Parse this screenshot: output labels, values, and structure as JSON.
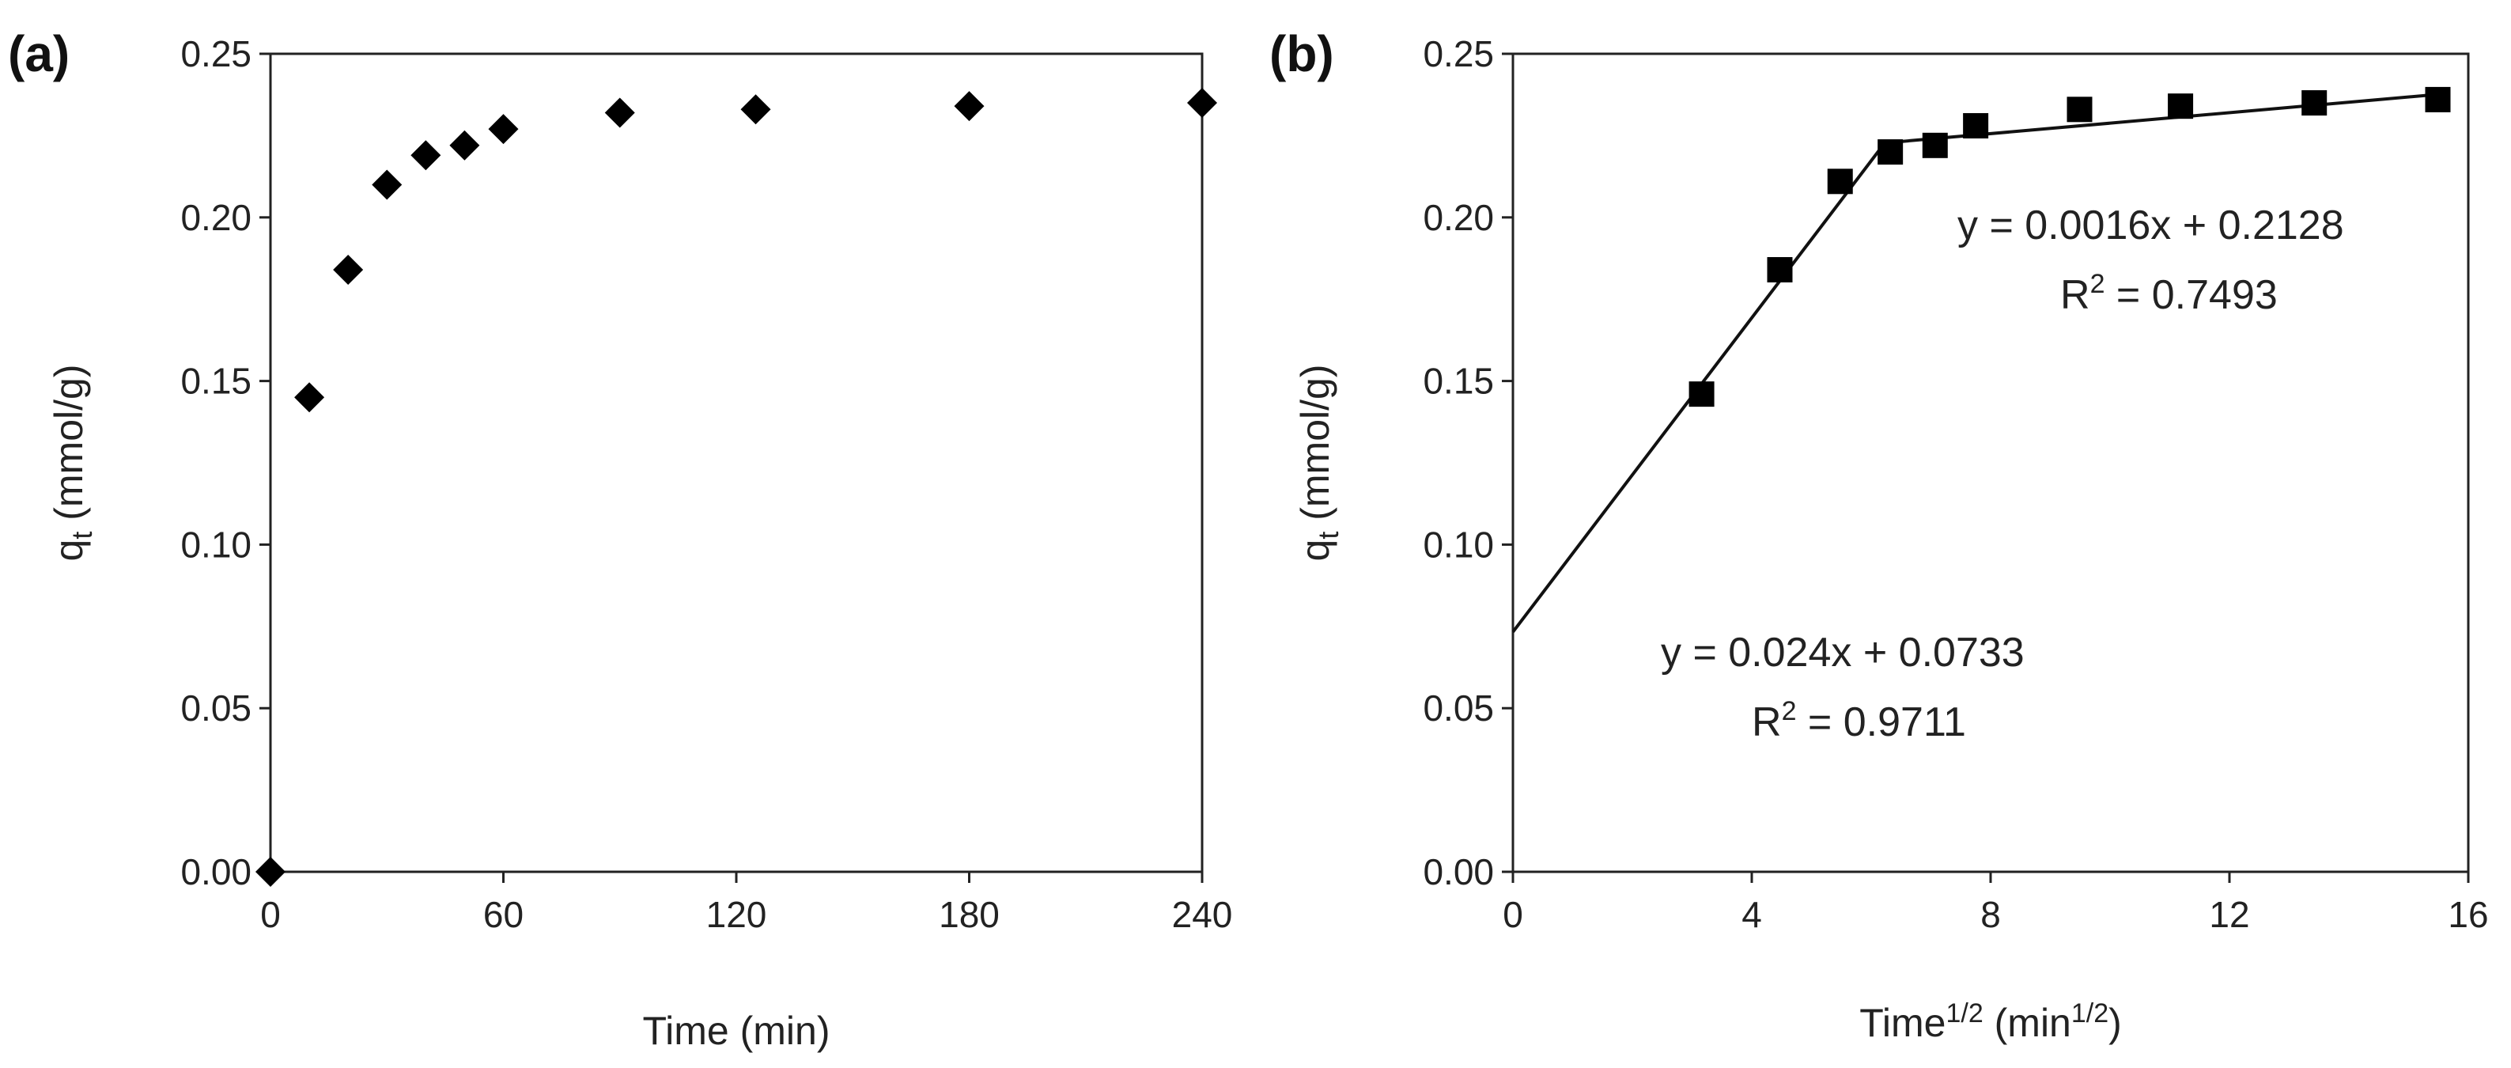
{
  "chart_data": [
    {
      "type": "scatter",
      "panel_label": "(a)",
      "title": "",
      "xlabel": "Time (min)",
      "ylabel_main": "q",
      "ylabel_sub": "t",
      "ylabel_rest": " (mmol/g)",
      "xlim": [
        0,
        240
      ],
      "ylim": [
        0,
        0.25
      ],
      "xticks": [
        0,
        60,
        120,
        180,
        240
      ],
      "xtick_labels": [
        "0",
        "60",
        "120",
        "180",
        "240"
      ],
      "yticks": [
        0,
        0.05,
        0.1,
        0.15,
        0.2,
        0.25
      ],
      "ytick_labels": [
        "0.00",
        "0.05",
        "0.10",
        "0.15",
        "0.20",
        "0.25"
      ],
      "marker": "diamond",
      "grid": false,
      "series": [
        {
          "name": "qt",
          "x": [
            0,
            10,
            20,
            30,
            40,
            50,
            60,
            90,
            125,
            180,
            240
          ],
          "y": [
            0.0,
            0.145,
            0.184,
            0.21,
            0.219,
            0.222,
            0.227,
            0.232,
            0.233,
            0.234,
            0.235
          ]
        }
      ]
    },
    {
      "type": "scatter",
      "panel_label": "(b)",
      "title": "",
      "xlabel_main": "Time",
      "xlabel_sup1": "1/2",
      "xlabel_mid": " (min",
      "xlabel_sup2": "1/2",
      "xlabel_end": ")",
      "ylabel_main": "q",
      "ylabel_sub": "t",
      "ylabel_rest": " (mmol/g)",
      "xlim": [
        0,
        16
      ],
      "ylim": [
        0,
        0.25
      ],
      "xticks": [
        0,
        4,
        8,
        12,
        16
      ],
      "xtick_labels": [
        "0",
        "4",
        "8",
        "12",
        "16"
      ],
      "yticks": [
        0,
        0.05,
        0.1,
        0.15,
        0.2,
        0.25
      ],
      "ytick_labels": [
        "0.00",
        "0.05",
        "0.10",
        "0.15",
        "0.20",
        "0.25"
      ],
      "marker": "square",
      "grid": false,
      "series": [
        {
          "name": "qt",
          "x": [
            3.16,
            4.47,
            5.48,
            6.32,
            7.07,
            7.75,
            9.49,
            11.18,
            13.42,
            15.49
          ],
          "y": [
            0.146,
            0.184,
            0.211,
            0.22,
            0.222,
            0.228,
            0.233,
            0.234,
            0.235,
            0.236
          ]
        }
      ],
      "fits": [
        {
          "slope": 0.024,
          "intercept": 0.0733,
          "x_range": [
            0,
            6.2
          ],
          "equation": "y = 0.024x + 0.0733",
          "r2_label": "R",
          "r2_sup": "2",
          "r2_value": " = 0.9711"
        },
        {
          "slope": 0.0016,
          "intercept": 0.2128,
          "x_range": [
            6.2,
            15.5
          ],
          "equation": "y = 0.0016x + 0.2128",
          "r2_label": "R",
          "r2_sup": "2",
          "r2_value": " = 0.7493"
        }
      ]
    }
  ]
}
